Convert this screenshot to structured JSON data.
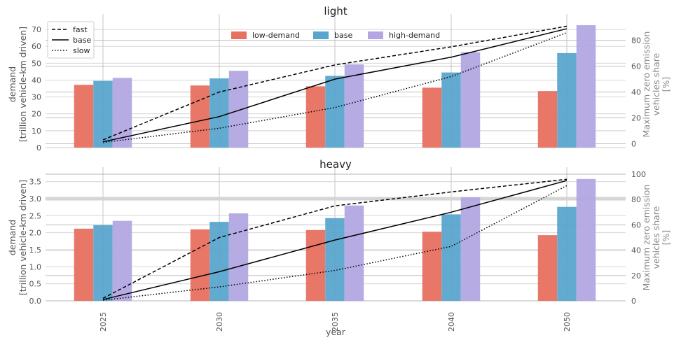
{
  "chart_data": [
    {
      "type": "bar",
      "title": "light",
      "categories": [
        "2025",
        "2030",
        "2035",
        "2040",
        "2050"
      ],
      "ylabel": "demand\n[trillion vehicle-km driven]",
      "ylim": [
        0,
        75
      ],
      "yticks": [
        0,
        10,
        20,
        30,
        40,
        50,
        60,
        70
      ],
      "y2label": "Maximum zero emission\nvehicles share\n[%]",
      "y2lim": [
        -3,
        95
      ],
      "y2ticks": [
        0,
        20,
        40,
        60,
        80
      ],
      "series": [
        {
          "name": "low-demand",
          "color": "#e8705f",
          "values": [
            37.2,
            36.8,
            36.3,
            35.5,
            33.5
          ]
        },
        {
          "name": "base",
          "color": "#5aa5cc",
          "values": [
            39.5,
            41.0,
            42.5,
            44.5,
            56.0
          ]
        },
        {
          "name": "high-demand",
          "color": "#b3a6e3",
          "values": [
            41.3,
            45.5,
            49.3,
            56.5,
            72.5
          ]
        }
      ],
      "lines": [
        {
          "name": "fast",
          "dash": "dashed",
          "values": [
            3,
            40,
            61,
            75,
            91
          ]
        },
        {
          "name": "base",
          "dash": "solid",
          "values": [
            1.5,
            21,
            50,
            67,
            89
          ]
        },
        {
          "name": "slow",
          "dash": "dotted",
          "values": [
            1,
            12,
            28,
            52,
            86
          ]
        }
      ],
      "grid": true,
      "bar_legend_placement": "top-center",
      "line_legend_placement": "top-left"
    },
    {
      "type": "bar",
      "title": "heavy",
      "categories": [
        "2025",
        "2030",
        "2035",
        "2040",
        "2050"
      ],
      "xlabel": "year",
      "ylabel": "demand\n[trillion vehicle-km driven]",
      "ylim": [
        0,
        3.72
      ],
      "yticks": [
        "0.0",
        "0.5",
        "1.0",
        "1.5",
        "2.0",
        "2.5",
        "3.0",
        "3.5"
      ],
      "y2label": "Maximum zero emission\nvehicles share\n[%]",
      "y2lim": [
        0,
        100
      ],
      "y2ticks": [
        0,
        20,
        40,
        60,
        80,
        100
      ],
      "series": [
        {
          "name": "low-demand",
          "color": "#e8705f",
          "values": [
            2.12,
            2.1,
            2.08,
            2.03,
            1.93
          ]
        },
        {
          "name": "base",
          "color": "#5aa5cc",
          "values": [
            2.22,
            2.32,
            2.43,
            2.54,
            2.76
          ]
        },
        {
          "name": "high-demand",
          "color": "#b3a6e3",
          "values": [
            2.35,
            2.57,
            2.8,
            3.04,
            3.58
          ]
        }
      ],
      "lines": [
        {
          "name": "fast",
          "dash": "dashed",
          "values": [
            2,
            50,
            75,
            86,
            96
          ]
        },
        {
          "name": "base",
          "dash": "solid",
          "values": [
            1,
            23,
            48,
            70,
            95
          ]
        },
        {
          "name": "slow",
          "dash": "dotted",
          "values": [
            0.5,
            11,
            24,
            43,
            91
          ]
        }
      ],
      "grid": true
    }
  ]
}
